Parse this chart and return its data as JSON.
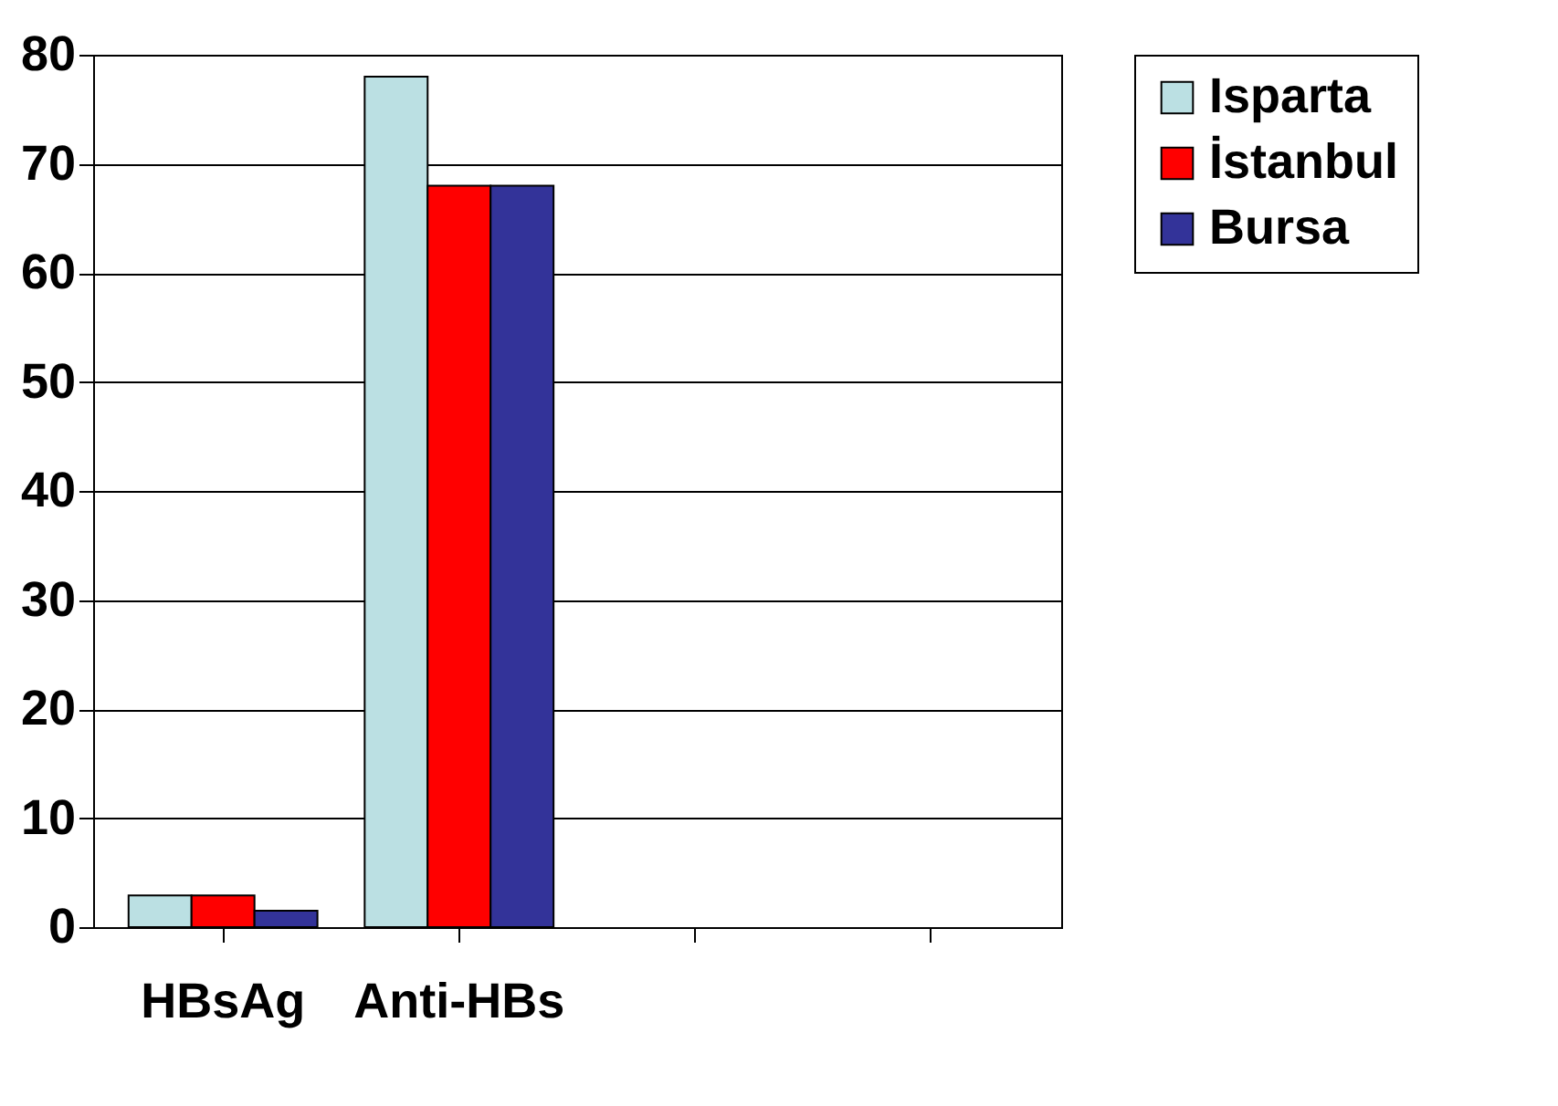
{
  "chart_data": {
    "type": "bar",
    "categories": [
      "HBsAg",
      "Anti-HBs",
      null,
      null
    ],
    "series": [
      {
        "name": "Isparta",
        "color": "#bbe0e3",
        "values": [
          2.9,
          78,
          null,
          null
        ]
      },
      {
        "name": "İstanbul",
        "color": "#ff0000",
        "values": [
          2.9,
          68,
          null,
          null
        ]
      },
      {
        "name": "Bursa",
        "color": "#333399",
        "values": [
          1.5,
          68,
          null,
          null
        ]
      }
    ],
    "ylim": [
      0,
      80
    ],
    "yticks": [
      0,
      10,
      20,
      30,
      40,
      50,
      60,
      70,
      80
    ],
    "grid": "y",
    "legend": "right"
  }
}
